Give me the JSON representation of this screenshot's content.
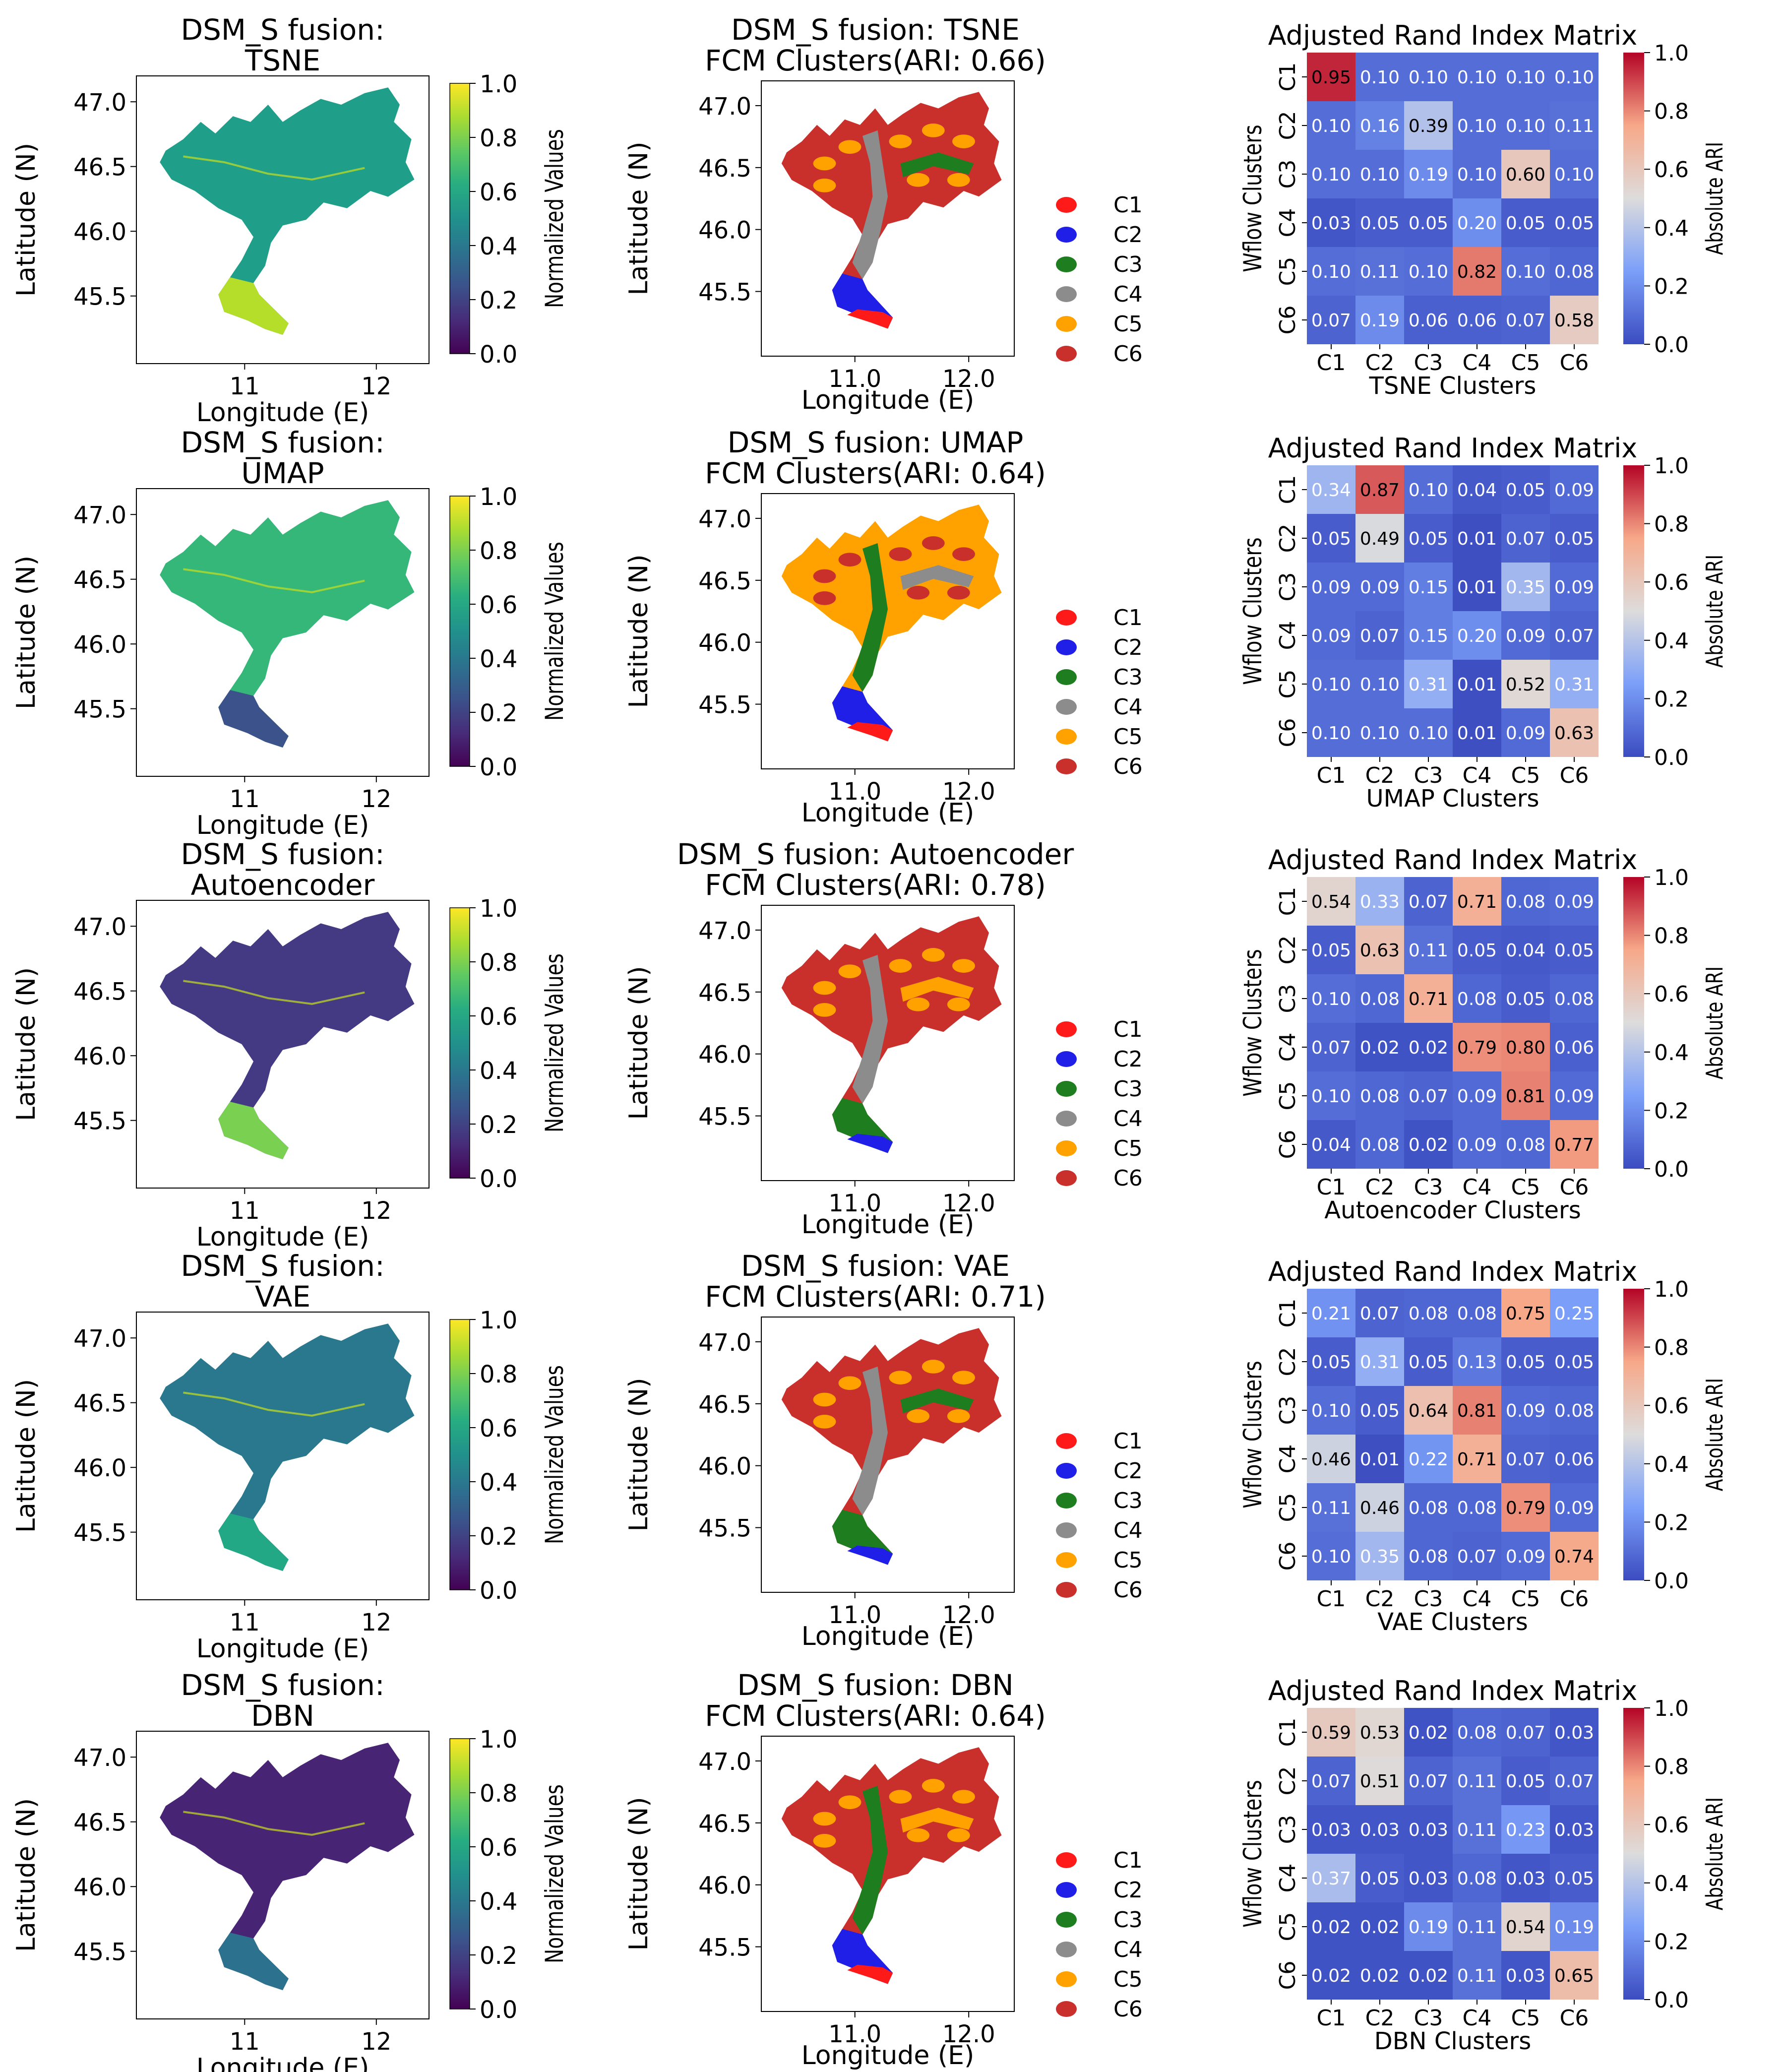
{
  "figure": {
    "legend_labels": [
      "C1",
      "C2",
      "C3",
      "C4",
      "C5",
      "C6"
    ],
    "legend_colors": [
      "#ff1a1a",
      "#1f1fe8",
      "#1e7d1e",
      "#8c8c8c",
      "#ffa200",
      "#c9302c"
    ],
    "cluster_colors_legend": "C1 red, C2 blue, C3 green, C4 gray, C5 orange, C6 dark red"
  },
  "chart_data": [
    {
      "type": "heatmap",
      "panel": "tsne-map",
      "title_line1": "DSM_S fusion:",
      "title_line2": "TSNE",
      "xlabel": "Longitude (E)",
      "ylabel": "Latitude (N)",
      "xticks": [
        "11",
        "12"
      ],
      "yticks": [
        "47.0",
        "46.5",
        "46.0",
        "45.5"
      ],
      "colorbar_label": "Normalized Values",
      "colorbar_ticks": [
        "1.0",
        "0.8",
        "0.6",
        "0.4",
        "0.2",
        "0.0"
      ],
      "colormap": "viridis",
      "color_north": "#1f9e89",
      "color_south": "#b5de2b"
    },
    {
      "type": "scatter",
      "panel": "tsne-fcm",
      "title_line1": "DSM_S fusion: TSNE",
      "title_line2": "FCM Clusters(ARI: 0.66)",
      "ari": 0.66,
      "xlabel": "Longitude (E)",
      "ylabel": "Latitude (N)",
      "xticks": [
        "11.0",
        "12.0"
      ],
      "yticks": [
        "47.0",
        "46.5",
        "46.0",
        "45.5"
      ],
      "legend": [
        "C1",
        "C2",
        "C3",
        "C4",
        "C5",
        "C6"
      ],
      "fill_primary": "#c9302c",
      "fill_secondary": "#ffa200",
      "fill_valley": "#8c8c8c",
      "fill_valley2": "#1e7d1e",
      "fill_south": "#1f1fe8",
      "fill_tip": "#ff1a1a"
    },
    {
      "type": "heatmap",
      "panel": "tsne-ari",
      "title": "Adjusted Rand Index Matrix",
      "xlabel": "TSNE Clusters",
      "ylabel": "Wflow Clusters",
      "xticks": [
        "C1",
        "C2",
        "C3",
        "C4",
        "C5",
        "C6"
      ],
      "yticks": [
        "C1",
        "C2",
        "C3",
        "C4",
        "C5",
        "C6"
      ],
      "colorbar_label": "Absolute ARI",
      "colorbar_ticks": [
        "1.0",
        "0.8",
        "0.6",
        "0.4",
        "0.2",
        "0.0"
      ],
      "matrix": [
        [
          "0.95",
          "0.10",
          "0.10",
          "0.10",
          "0.10",
          "0.10"
        ],
        [
          "0.10",
          "0.16",
          "0.39",
          "0.10",
          "0.10",
          "0.11"
        ],
        [
          "0.10",
          "0.10",
          "0.19",
          "0.10",
          "0.60",
          "0.10"
        ],
        [
          "0.03",
          "0.05",
          "0.05",
          "0.20",
          "0.05",
          "0.05"
        ],
        [
          "0.10",
          "0.11",
          "0.10",
          "0.82",
          "0.10",
          "0.08"
        ],
        [
          "0.07",
          "0.19",
          "0.06",
          "0.06",
          "0.07",
          "0.58"
        ]
      ]
    },
    {
      "type": "heatmap",
      "panel": "umap-map",
      "title_line1": "DSM_S fusion:",
      "title_line2": "UMAP",
      "xlabel": "Longitude (E)",
      "ylabel": "Latitude (N)",
      "xticks": [
        "11",
        "12"
      ],
      "yticks": [
        "47.0",
        "46.5",
        "46.0",
        "45.5"
      ],
      "colorbar_label": "Normalized Values",
      "colorbar_ticks": [
        "1.0",
        "0.8",
        "0.6",
        "0.4",
        "0.2",
        "0.0"
      ],
      "colormap": "viridis",
      "color_north": "#35b779",
      "color_south": "#3b528b"
    },
    {
      "type": "scatter",
      "panel": "umap-fcm",
      "title_line1": "DSM_S fusion: UMAP",
      "title_line2": "FCM Clusters(ARI: 0.64)",
      "ari": 0.64,
      "xlabel": "Longitude (E)",
      "ylabel": "Latitude (N)",
      "xticks": [
        "11.0",
        "12.0"
      ],
      "yticks": [
        "47.0",
        "46.5",
        "46.0",
        "45.5"
      ],
      "legend": [
        "C1",
        "C2",
        "C3",
        "C4",
        "C5",
        "C6"
      ],
      "fill_primary": "#ffa200",
      "fill_secondary": "#c9302c",
      "fill_valley": "#1e7d1e",
      "fill_valley2": "#8c8c8c",
      "fill_south": "#1f1fe8",
      "fill_tip": "#ff1a1a"
    },
    {
      "type": "heatmap",
      "panel": "umap-ari",
      "title": "Adjusted Rand Index Matrix",
      "xlabel": "UMAP Clusters",
      "ylabel": "Wflow Clusters",
      "xticks": [
        "C1",
        "C2",
        "C3",
        "C4",
        "C5",
        "C6"
      ],
      "yticks": [
        "C1",
        "C2",
        "C3",
        "C4",
        "C5",
        "C6"
      ],
      "colorbar_label": "Absolute ARI",
      "colorbar_ticks": [
        "1.0",
        "0.8",
        "0.6",
        "0.4",
        "0.2",
        "0.0"
      ],
      "matrix": [
        [
          "0.34",
          "0.87",
          "0.10",
          "0.04",
          "0.05",
          "0.09"
        ],
        [
          "0.05",
          "0.49",
          "0.05",
          "0.01",
          "0.07",
          "0.05"
        ],
        [
          "0.09",
          "0.09",
          "0.15",
          "0.01",
          "0.35",
          "0.09"
        ],
        [
          "0.09",
          "0.07",
          "0.15",
          "0.20",
          "0.09",
          "0.07"
        ],
        [
          "0.10",
          "0.10",
          "0.31",
          "0.01",
          "0.52",
          "0.31"
        ],
        [
          "0.10",
          "0.10",
          "0.10",
          "0.01",
          "0.09",
          "0.63"
        ]
      ]
    },
    {
      "type": "heatmap",
      "panel": "autoencoder-map",
      "title_line1": "DSM_S fusion:",
      "title_line2": "Autoencoder",
      "xlabel": "Longitude (E)",
      "ylabel": "Latitude (N)",
      "xticks": [
        "11",
        "12"
      ],
      "yticks": [
        "47.0",
        "46.5",
        "46.0",
        "45.5"
      ],
      "colorbar_label": "Normalized Values",
      "colorbar_ticks": [
        "1.0",
        "0.8",
        "0.6",
        "0.4",
        "0.2",
        "0.0"
      ],
      "colormap": "viridis",
      "color_north": "#443983",
      "color_south": "#7ad151"
    },
    {
      "type": "scatter",
      "panel": "autoencoder-fcm",
      "title_line1": "DSM_S fusion: Autoencoder",
      "title_line2": "FCM Clusters(ARI: 0.78)",
      "ari": 0.78,
      "xlabel": "Longitude (E)",
      "ylabel": "Latitude (N)",
      "xticks": [
        "11.0",
        "12.0"
      ],
      "yticks": [
        "47.0",
        "46.5",
        "46.0",
        "45.5"
      ],
      "legend": [
        "C1",
        "C2",
        "C3",
        "C4",
        "C5",
        "C6"
      ],
      "fill_primary": "#c9302c",
      "fill_secondary": "#ffa200",
      "fill_valley": "#8c8c8c",
      "fill_valley2": "#ffa200",
      "fill_south": "#1e7d1e",
      "fill_tip": "#1f1fe8"
    },
    {
      "type": "heatmap",
      "panel": "autoencoder-ari",
      "title": "Adjusted Rand Index Matrix",
      "xlabel": "Autoencoder Clusters",
      "ylabel": "Wflow Clusters",
      "xticks": [
        "C1",
        "C2",
        "C3",
        "C4",
        "C5",
        "C6"
      ],
      "yticks": [
        "C1",
        "C2",
        "C3",
        "C4",
        "C5",
        "C6"
      ],
      "colorbar_label": "Absolute ARI",
      "colorbar_ticks": [
        "1.0",
        "0.8",
        "0.6",
        "0.4",
        "0.2",
        "0.0"
      ],
      "matrix": [
        [
          "0.54",
          "0.33",
          "0.07",
          "0.71",
          "0.08",
          "0.09"
        ],
        [
          "0.05",
          "0.63",
          "0.11",
          "0.05",
          "0.04",
          "0.05"
        ],
        [
          "0.10",
          "0.08",
          "0.71",
          "0.08",
          "0.05",
          "0.08"
        ],
        [
          "0.07",
          "0.02",
          "0.02",
          "0.79",
          "0.80",
          "0.06"
        ],
        [
          "0.10",
          "0.08",
          "0.07",
          "0.09",
          "0.81",
          "0.09"
        ],
        [
          "0.04",
          "0.08",
          "0.02",
          "0.09",
          "0.08",
          "0.77"
        ]
      ]
    },
    {
      "type": "heatmap",
      "panel": "vae-map",
      "title_line1": "DSM_S fusion:",
      "title_line2": "VAE",
      "xlabel": "Longitude (E)",
      "ylabel": "Latitude (N)",
      "xticks": [
        "11",
        "12"
      ],
      "yticks": [
        "47.0",
        "46.5",
        "46.0",
        "45.5"
      ],
      "colorbar_label": "Normalized Values",
      "colorbar_ticks": [
        "1.0",
        "0.8",
        "0.6",
        "0.4",
        "0.2",
        "0.0"
      ],
      "colormap": "viridis",
      "color_north": "#2a788e",
      "color_south": "#22a884"
    },
    {
      "type": "scatter",
      "panel": "vae-fcm",
      "title_line1": "DSM_S fusion: VAE",
      "title_line2": "FCM Clusters(ARI: 0.71)",
      "ari": 0.71,
      "xlabel": "Longitude (E)",
      "ylabel": "Latitude (N)",
      "xticks": [
        "11.0",
        "12.0"
      ],
      "yticks": [
        "47.0",
        "46.5",
        "46.0",
        "45.5"
      ],
      "legend": [
        "C1",
        "C2",
        "C3",
        "C4",
        "C5",
        "C6"
      ],
      "fill_primary": "#c9302c",
      "fill_secondary": "#ffa200",
      "fill_valley": "#8c8c8c",
      "fill_valley2": "#1e7d1e",
      "fill_south": "#1e7d1e",
      "fill_tip": "#1f1fe8"
    },
    {
      "type": "heatmap",
      "panel": "vae-ari",
      "title": "Adjusted Rand Index Matrix",
      "xlabel": "VAE Clusters",
      "ylabel": "Wflow Clusters",
      "xticks": [
        "C1",
        "C2",
        "C3",
        "C4",
        "C5",
        "C6"
      ],
      "yticks": [
        "C1",
        "C2",
        "C3",
        "C4",
        "C5",
        "C6"
      ],
      "colorbar_label": "Absolute ARI",
      "colorbar_ticks": [
        "1.0",
        "0.8",
        "0.6",
        "0.4",
        "0.2",
        "0.0"
      ],
      "matrix": [
        [
          "0.21",
          "0.07",
          "0.08",
          "0.08",
          "0.75",
          "0.25"
        ],
        [
          "0.05",
          "0.31",
          "0.05",
          "0.13",
          "0.05",
          "0.05"
        ],
        [
          "0.10",
          "0.05",
          "0.64",
          "0.81",
          "0.09",
          "0.08"
        ],
        [
          "0.46",
          "0.01",
          "0.22",
          "0.71",
          "0.07",
          "0.06"
        ],
        [
          "0.11",
          "0.46",
          "0.08",
          "0.08",
          "0.79",
          "0.09"
        ],
        [
          "0.10",
          "0.35",
          "0.08",
          "0.07",
          "0.09",
          "0.74"
        ]
      ]
    },
    {
      "type": "heatmap",
      "panel": "dbn-map",
      "title_line1": "DSM_S fusion:",
      "title_line2": "DBN",
      "xlabel": "Longitude (E)",
      "ylabel": "Latitude (N)",
      "xticks": [
        "11",
        "12"
      ],
      "yticks": [
        "47.0",
        "46.5",
        "46.0",
        "45.5"
      ],
      "colorbar_label": "Normalized Values",
      "colorbar_ticks": [
        "1.0",
        "0.8",
        "0.6",
        "0.4",
        "0.2",
        "0.0"
      ],
      "colormap": "viridis",
      "color_north": "#482475",
      "color_south": "#2c728e"
    },
    {
      "type": "scatter",
      "panel": "dbn-fcm",
      "title_line1": "DSM_S fusion: DBN",
      "title_line2": "FCM Clusters(ARI: 0.64)",
      "ari": 0.64,
      "xlabel": "Longitude (E)",
      "ylabel": "Latitude (N)",
      "xticks": [
        "11.0",
        "12.0"
      ],
      "yticks": [
        "47.0",
        "46.5",
        "46.0",
        "45.5"
      ],
      "legend": [
        "C1",
        "C2",
        "C3",
        "C4",
        "C5",
        "C6"
      ],
      "fill_primary": "#c9302c",
      "fill_secondary": "#ffa200",
      "fill_valley": "#1e7d1e",
      "fill_valley2": "#ffa200",
      "fill_south": "#1f1fe8",
      "fill_tip": "#ff1a1a"
    },
    {
      "type": "heatmap",
      "panel": "dbn-ari",
      "title": "Adjusted Rand Index Matrix",
      "xlabel": "DBN Clusters",
      "ylabel": "Wflow Clusters",
      "xticks": [
        "C1",
        "C2",
        "C3",
        "C4",
        "C5",
        "C6"
      ],
      "yticks": [
        "C1",
        "C2",
        "C3",
        "C4",
        "C5",
        "C6"
      ],
      "colorbar_label": "Absolute ARI",
      "colorbar_ticks": [
        "1.0",
        "0.8",
        "0.6",
        "0.4",
        "0.2",
        "0.0"
      ],
      "matrix": [
        [
          "0.59",
          "0.53",
          "0.02",
          "0.08",
          "0.07",
          "0.03"
        ],
        [
          "0.07",
          "0.51",
          "0.07",
          "0.11",
          "0.05",
          "0.07"
        ],
        [
          "0.03",
          "0.03",
          "0.03",
          "0.11",
          "0.23",
          "0.03"
        ],
        [
          "0.37",
          "0.05",
          "0.03",
          "0.08",
          "0.03",
          "0.05"
        ],
        [
          "0.02",
          "0.02",
          "0.19",
          "0.11",
          "0.54",
          "0.19"
        ],
        [
          "0.02",
          "0.02",
          "0.02",
          "0.11",
          "0.03",
          "0.65"
        ]
      ]
    }
  ]
}
